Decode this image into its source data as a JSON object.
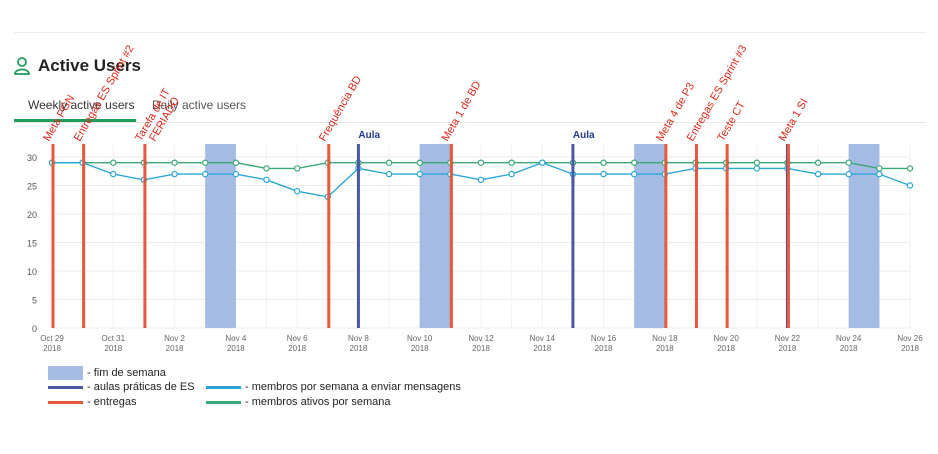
{
  "header": {
    "title": "Active Users",
    "icon": "user-icon",
    "accent": "#1e9c5a"
  },
  "tabs": [
    {
      "label": "Weekly active users",
      "active": true
    },
    {
      "label": "Daily active users",
      "active": false
    }
  ],
  "chart_data": {
    "type": "line",
    "x": [
      "2018-10-29",
      "2018-10-30",
      "2018-10-31",
      "2018-11-01",
      "2018-11-02",
      "2018-11-03",
      "2018-11-04",
      "2018-11-05",
      "2018-11-06",
      "2018-11-07",
      "2018-11-08",
      "2018-11-09",
      "2018-11-10",
      "2018-11-11",
      "2018-11-12",
      "2018-11-13",
      "2018-11-14",
      "2018-11-15",
      "2018-11-16",
      "2018-11-17",
      "2018-11-18",
      "2018-11-19",
      "2018-11-20",
      "2018-11-21",
      "2018-11-22",
      "2018-11-23",
      "2018-11-24",
      "2018-11-25",
      "2018-11-26"
    ],
    "xticks": [
      {
        "date": "2018-10-29",
        "label": "Oct 29",
        "year": "2018"
      },
      {
        "date": "2018-10-31",
        "label": "Oct 31",
        "year": "2018"
      },
      {
        "date": "2018-11-02",
        "label": "Nov 2",
        "year": "2018"
      },
      {
        "date": "2018-11-04",
        "label": "Nov 4",
        "year": "2018"
      },
      {
        "date": "2018-11-06",
        "label": "Nov 6",
        "year": "2018"
      },
      {
        "date": "2018-11-08",
        "label": "Nov 8",
        "year": "2018"
      },
      {
        "date": "2018-11-10",
        "label": "Nov 10",
        "year": "2018"
      },
      {
        "date": "2018-11-12",
        "label": "Nov 12",
        "year": "2018"
      },
      {
        "date": "2018-11-14",
        "label": "Nov 14",
        "year": "2018"
      },
      {
        "date": "2018-11-16",
        "label": "Nov 16",
        "year": "2018"
      },
      {
        "date": "2018-11-18",
        "label": "Nov 18",
        "year": "2018"
      },
      {
        "date": "2018-11-20",
        "label": "Nov 20",
        "year": "2018"
      },
      {
        "date": "2018-11-22",
        "label": "Nov 22",
        "year": "2018"
      },
      {
        "date": "2018-11-24",
        "label": "Nov 24",
        "year": "2018"
      },
      {
        "date": "2018-11-26",
        "label": "Nov 26",
        "year": "2018"
      }
    ],
    "yticks": [
      0,
      5,
      10,
      15,
      20,
      25,
      30
    ],
    "ylim": [
      0,
      32
    ],
    "grid": true,
    "series": [
      {
        "key": "weekly",
        "color": "#3aa876",
        "values": [
          29,
          29,
          29,
          29,
          29,
          29,
          29,
          28,
          28,
          29,
          29,
          29,
          29,
          29,
          29,
          29,
          29,
          29,
          29,
          29,
          29,
          29,
          29,
          29,
          29,
          29,
          29,
          28,
          28
        ]
      },
      {
        "key": "messaging",
        "color": "#2aa6d8",
        "values": [
          29,
          29,
          27,
          26,
          27,
          27,
          27,
          26,
          24,
          23,
          28,
          27,
          27,
          27,
          26,
          27,
          29,
          27,
          27,
          27,
          27,
          28,
          28,
          28,
          28,
          27,
          27,
          27,
          25
        ]
      }
    ],
    "weekends": [
      {
        "start": "2018-11-03",
        "end": "2018-11-04"
      },
      {
        "start": "2018-11-10",
        "end": "2018-11-11"
      },
      {
        "start": "2018-11-17",
        "end": "2018-11-18"
      },
      {
        "start": "2018-11-24",
        "end": "2018-11-25"
      }
    ],
    "annotations": [
      {
        "date": "2018-10-29",
        "kind": "entrega",
        "label": "Meta PGN"
      },
      {
        "date": "2018-10-30",
        "kind": "entrega",
        "label": "Entregas ES Sprint #2"
      },
      {
        "date": "2018-11-01",
        "kind": "entrega",
        "label": "Tarefa de IT",
        "label2": "FERIADO"
      },
      {
        "date": "2018-11-07",
        "kind": "entrega",
        "label": "Frequência BD"
      },
      {
        "date": "2018-11-08",
        "kind": "aula",
        "label": "Aula"
      },
      {
        "date": "2018-11-11",
        "kind": "entrega",
        "label": "Meta 1 de BD"
      },
      {
        "date": "2018-11-15",
        "kind": "aula",
        "label": "Aula"
      },
      {
        "date": "2018-11-18",
        "kind": "entrega",
        "label": "Meta 4 de P3"
      },
      {
        "date": "2018-11-19",
        "kind": "entrega",
        "label": "Entregas ES Sprint #3"
      },
      {
        "date": "2018-11-20",
        "kind": "entrega",
        "label": "Teste CT"
      },
      {
        "date": "2018-11-22",
        "kind": "aula",
        "label": ""
      },
      {
        "date": "2018-11-22",
        "kind": "entrega",
        "label": "Meta 1 SI"
      }
    ],
    "colors": {
      "weekend": "#a4bbe3",
      "aula": "#4a56a6",
      "entrega": "#e9583a",
      "aula_text": "#1f3a93",
      "entrega_text": "#e0281a"
    }
  },
  "legend": [
    {
      "swatch": "box",
      "color": "#a4bbe3",
      "label": "- fim de semana"
    },
    {
      "swatch": "line",
      "color": "#4a56a6",
      "label": "- aulas práticas de ES"
    },
    {
      "swatch": "line",
      "color": "#e9583a",
      "label": "- entregas"
    },
    {
      "swatch": "line",
      "color": "#2aa6d8",
      "label": "- membros por semana a enviar mensagens"
    },
    {
      "swatch": "line",
      "color": "#3aa876",
      "label": "- membros ativos por semana"
    }
  ]
}
